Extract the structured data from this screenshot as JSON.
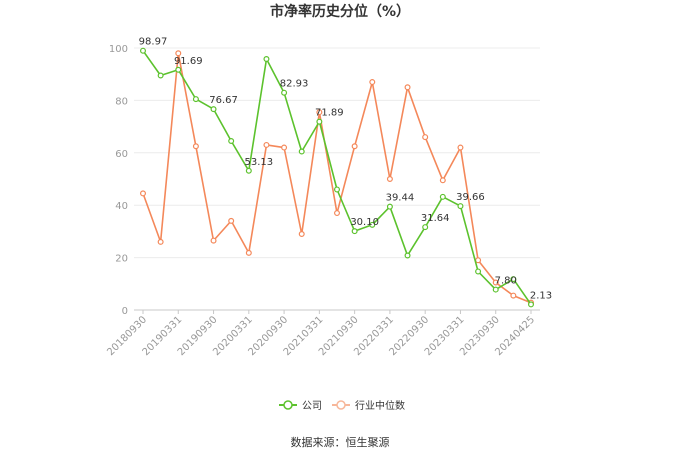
{
  "chart_data": {
    "type": "line",
    "title": "市净率历史分位（%）",
    "xlabel": "",
    "ylabel": "",
    "ylim": [
      0,
      100
    ],
    "yticks": [
      0,
      20,
      40,
      60,
      80,
      100
    ],
    "grid": true,
    "legend_position": "bottom",
    "x": [
      "20180930",
      "20181231",
      "20190331",
      "20190630",
      "20190930",
      "20191231",
      "20200331",
      "20200630",
      "20200930",
      "20201231",
      "20210331",
      "20210630",
      "20210930",
      "20211231",
      "20220331",
      "20220630",
      "20220930",
      "20221231",
      "20230331",
      "20230630",
      "20230930",
      "20231231",
      "20240425"
    ],
    "xtick_labels": [
      "20180930",
      "20190331",
      "20190930",
      "20200331",
      "20200930",
      "20210331",
      "20210930",
      "20220331",
      "20220930",
      "20230331",
      "20230930",
      "20240425"
    ],
    "series": [
      {
        "name": "公司",
        "color": "#5cc22d",
        "values": [
          98.97,
          89.5,
          91.69,
          80.5,
          76.67,
          64.5,
          53.13,
          95.8,
          82.93,
          60.5,
          71.89,
          46.0,
          30.1,
          32.5,
          39.44,
          20.8,
          31.64,
          43.2,
          39.66,
          14.7,
          7.8,
          11.8,
          2.13
        ],
        "labeled": {
          "0": "98.97",
          "2": "91.69",
          "4": "76.67",
          "6": "53.13",
          "8": "82.93",
          "10": "71.89",
          "12": "30.10",
          "14": "39.44",
          "16": "31.64",
          "18": "39.66",
          "20": "7.80",
          "22": "2.13"
        }
      },
      {
        "name": "行业中位数",
        "color": "#f4885a",
        "values": [
          44.5,
          26.0,
          98.0,
          62.5,
          26.5,
          34.0,
          21.8,
          63.0,
          62.0,
          29.0,
          75.5,
          37.0,
          62.5,
          87.0,
          50.0,
          85.0,
          66.0,
          49.5,
          62.0,
          19.0,
          10.5,
          5.5,
          2.8
        ]
      }
    ],
    "source": "数据来源：恒生聚源"
  }
}
